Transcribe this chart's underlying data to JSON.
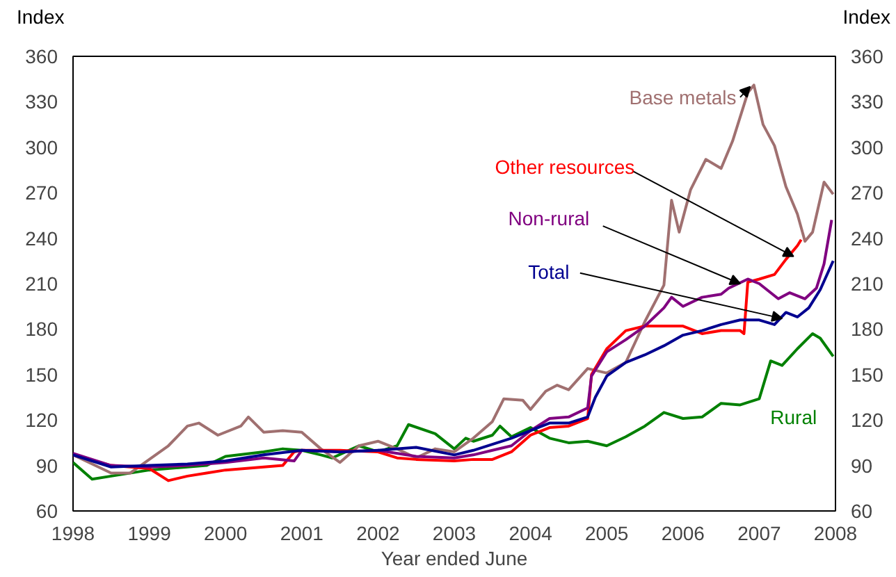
{
  "chart_data": {
    "type": "line",
    "xlabel": "Year ended June",
    "ylabel": "Index",
    "y2label": "Index",
    "xlim": [
      1998,
      2008
    ],
    "xticks": [
      1998,
      1999,
      2000,
      2001,
      2002,
      2003,
      2004,
      2005,
      2006,
      2007,
      2008
    ],
    "ylim": [
      60,
      360
    ],
    "yticks": [
      60,
      90,
      120,
      150,
      180,
      210,
      240,
      270,
      300,
      330,
      360
    ],
    "y2lim": [
      60,
      360
    ],
    "y2ticks": [
      60,
      90,
      120,
      150,
      180,
      210,
      240,
      270,
      300,
      330,
      360
    ],
    "grid": false,
    "marker": "none",
    "line_style": "solid",
    "series": [
      {
        "name": "Rural",
        "color": "#008000",
        "x": [
          1998.0,
          1998.25,
          1998.5,
          1999.0,
          1999.5,
          1999.75,
          2000.0,
          2000.5,
          2000.75,
          2001.0,
          2001.25,
          2001.4,
          2001.75,
          2002.0,
          2002.25,
          2002.4,
          2002.75,
          2003.0,
          2003.15,
          2003.25,
          2003.5,
          2003.6,
          2003.75,
          2004.0,
          2004.25,
          2004.5,
          2004.75,
          2005.0,
          2005.25,
          2005.5,
          2005.75,
          2006.0,
          2006.25,
          2006.5,
          2006.75,
          2007.0,
          2007.15,
          2007.3,
          2007.5,
          2007.7,
          2007.8,
          2007.97
        ],
        "values": [
          92,
          81,
          83,
          87,
          89,
          90,
          96,
          99,
          101,
          100,
          97,
          95,
          103,
          99,
          103,
          117,
          111,
          101,
          108,
          106,
          110,
          116,
          109,
          115,
          108,
          105,
          106,
          103,
          109,
          116,
          125,
          121,
          122,
          131,
          130,
          134,
          159,
          156,
          167,
          177,
          174,
          162
        ]
      },
      {
        "name": "Base metals",
        "color": "#a07070",
        "x": [
          1998.0,
          1998.5,
          1998.75,
          1999.0,
          1999.25,
          1999.5,
          1999.65,
          1999.9,
          2000.2,
          2000.3,
          2000.5,
          2000.75,
          2001.0,
          2001.25,
          2001.5,
          2001.75,
          2002.0,
          2002.25,
          2002.5,
          2002.75,
          2003.0,
          2003.25,
          2003.5,
          2003.65,
          2003.9,
          2004.0,
          2004.2,
          2004.35,
          2004.5,
          2004.75,
          2005.0,
          2005.25,
          2005.5,
          2005.75,
          2005.85,
          2005.95,
          2006.1,
          2006.3,
          2006.5,
          2006.65,
          2006.85,
          2006.93,
          2007.05,
          2007.2,
          2007.35,
          2007.5,
          2007.6,
          2007.7,
          2007.85,
          2007.97
        ],
        "values": [
          97,
          85,
          85,
          94,
          103,
          116,
          118,
          110,
          116,
          122,
          112,
          113,
          112,
          101,
          92,
          103,
          106,
          101,
          95,
          101,
          99,
          108,
          119,
          134,
          133,
          127,
          139,
          143,
          140,
          154,
          151,
          158,
          185,
          209,
          265,
          244,
          272,
          292,
          286,
          304,
          336,
          341,
          315,
          301,
          274,
          256,
          238,
          244,
          277,
          269
        ]
      },
      {
        "name": "Other resources",
        "color": "#ff0000",
        "x": [
          1998.0,
          1998.5,
          1999.0,
          1999.25,
          1999.5,
          1999.75,
          2000.0,
          2000.5,
          2000.75,
          2000.9,
          2001.0,
          2001.5,
          2002.0,
          2002.25,
          2002.5,
          2003.0,
          2003.25,
          2003.5,
          2003.75,
          2004.0,
          2004.25,
          2004.5,
          2004.75,
          2004.8,
          2005.0,
          2005.25,
          2005.5,
          2005.75,
          2006.0,
          2006.25,
          2006.5,
          2006.75,
          2006.8,
          2006.85,
          2007.0,
          2007.2,
          2007.35,
          2007.5,
          2007.55
        ],
        "values": [
          97,
          90,
          88,
          80,
          83,
          85,
          87,
          89,
          90,
          99,
          100,
          100,
          99,
          95,
          94,
          93,
          94,
          94,
          99,
          110,
          115,
          116,
          121,
          150,
          167,
          179,
          182,
          182,
          182,
          177,
          179,
          179,
          177,
          211,
          213,
          216,
          226,
          235,
          239
        ]
      },
      {
        "name": "Non-rural",
        "color": "#800080",
        "x": [
          1998.0,
          1998.5,
          1999.0,
          1999.5,
          2000.0,
          2000.5,
          2000.9,
          2001.0,
          2001.5,
          2002.0,
          2002.5,
          2003.0,
          2003.25,
          2003.5,
          2003.75,
          2004.0,
          2004.25,
          2004.5,
          2004.75,
          2004.8,
          2005.0,
          2005.25,
          2005.5,
          2005.75,
          2005.85,
          2006.0,
          2006.25,
          2006.5,
          2006.6,
          2006.85,
          2007.0,
          2007.25,
          2007.4,
          2007.6,
          2007.75,
          2007.85,
          2007.95
        ],
        "values": [
          98,
          90,
          89,
          90,
          92,
          95,
          93,
          100,
          99,
          100,
          96,
          95,
          97,
          100,
          103,
          113,
          121,
          122,
          128,
          149,
          165,
          173,
          182,
          194,
          201,
          195,
          201,
          203,
          207,
          213,
          210,
          200,
          204,
          200,
          207,
          223,
          252
        ]
      },
      {
        "name": "Total",
        "color": "#000090",
        "x": [
          1998.0,
          1998.5,
          1999.0,
          1999.5,
          2000.0,
          2000.5,
          2001.0,
          2001.5,
          2002.0,
          2002.5,
          2003.0,
          2003.25,
          2003.5,
          2003.75,
          2004.0,
          2004.25,
          2004.5,
          2004.75,
          2004.85,
          2005.0,
          2005.25,
          2005.5,
          2005.75,
          2006.0,
          2006.25,
          2006.5,
          2006.75,
          2007.0,
          2007.2,
          2007.35,
          2007.5,
          2007.65,
          2007.8,
          2007.97
        ],
        "values": [
          97,
          89,
          90,
          91,
          93,
          97,
          100,
          99,
          100,
          102,
          97,
          100,
          104,
          108,
          113,
          118,
          118,
          122,
          135,
          149,
          158,
          163,
          169,
          176,
          179,
          183,
          186,
          186,
          183,
          191,
          188,
          194,
          206,
          225
        ]
      }
    ]
  }
}
